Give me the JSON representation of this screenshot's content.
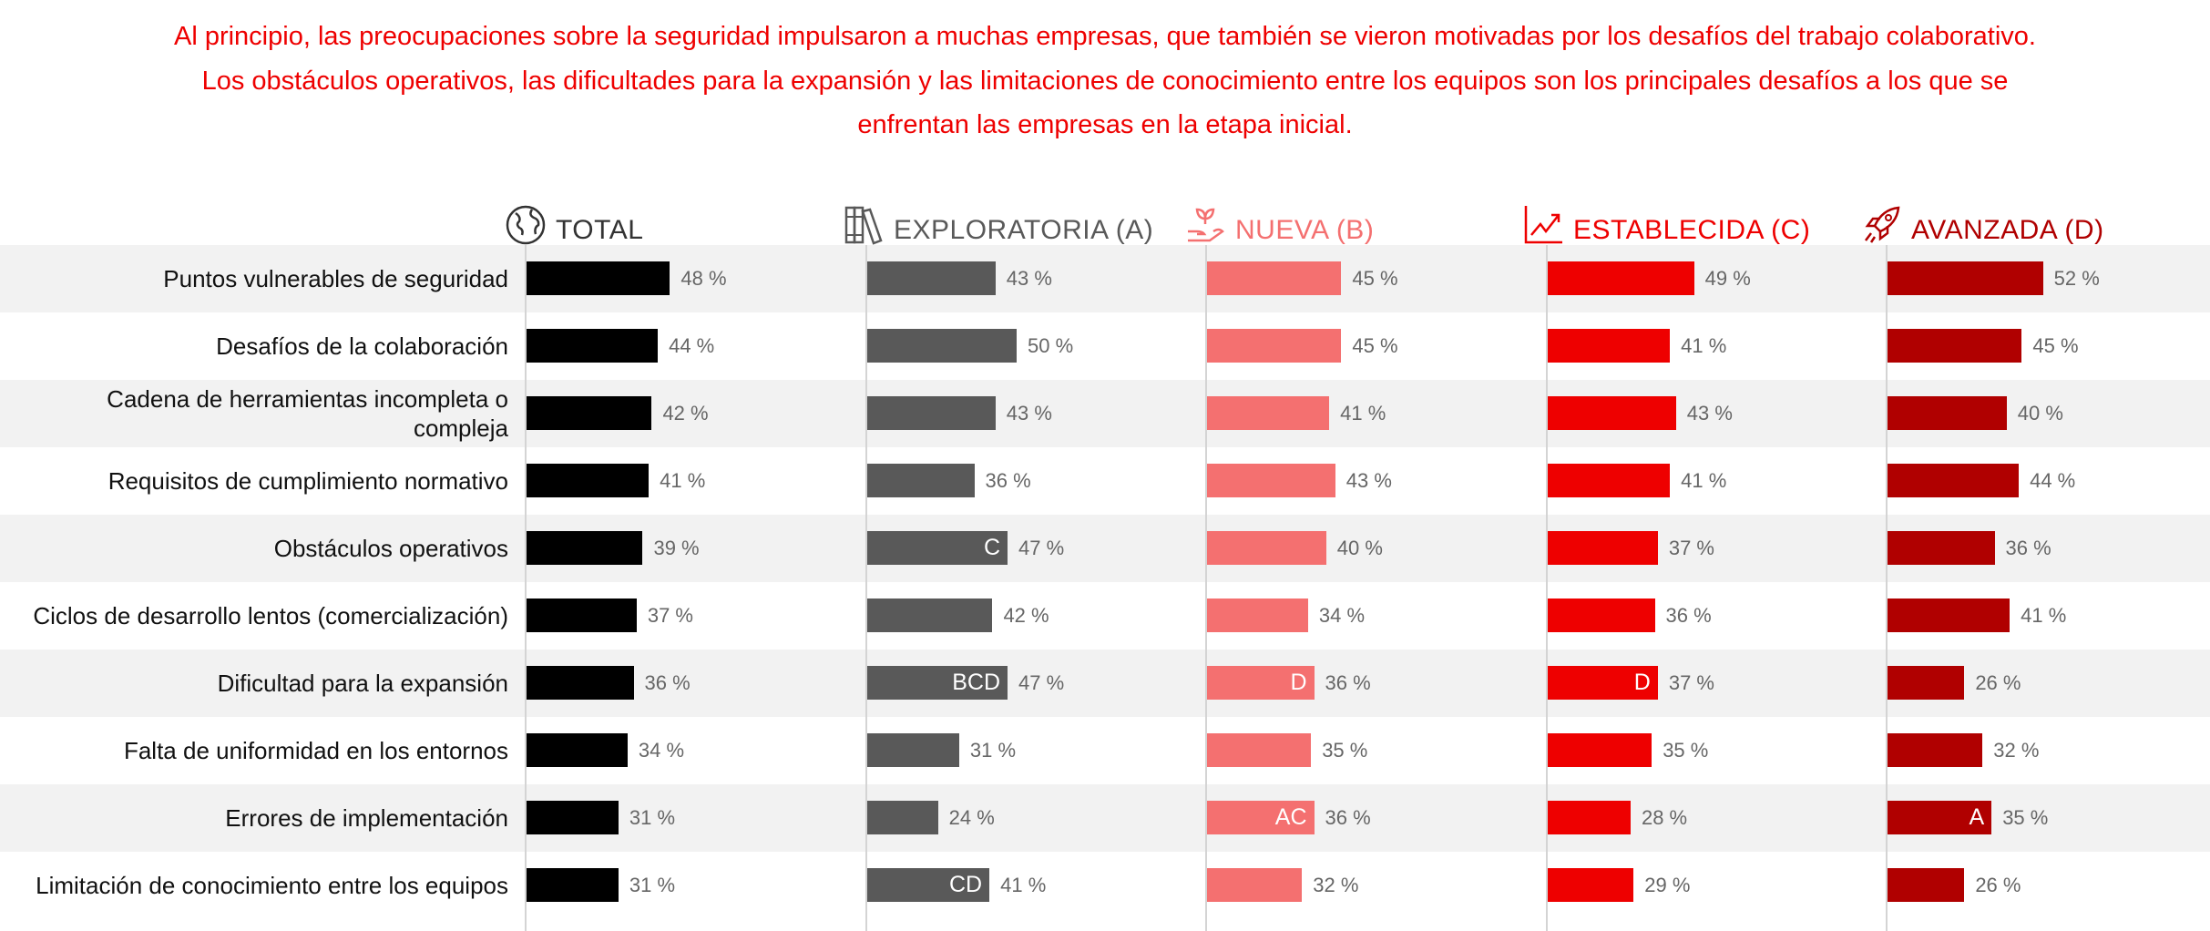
{
  "title_lines": [
    "Al principio, las preocupaciones sobre la seguridad impulsaron a muchas empresas, que también se vieron motivadas por los desafíos del trabajo colaborativo.",
    "Los obstáculos operativos, las dificultades para la expansión y las limitaciones de conocimiento entre los equipos son los principales desafíos a los que se",
    "enfrentan las empresas en la etapa inicial."
  ],
  "chart_data": {
    "type": "bar",
    "orientation": "horizontal",
    "unit": "%",
    "xlim": [
      0,
      100
    ],
    "grid": false,
    "categories": [
      "Puntos vulnerables de seguridad",
      "Desafíos de la colaboración",
      "Cadena de herramientas incompleta o compleja",
      "Requisitos de cumplimiento normativo",
      "Obstáculos operativos",
      "Ciclos de desarrollo lentos (comercialización)",
      "Dificultad para la expansión",
      "Falta de uniformidad en los entornos",
      "Errores de implementación",
      "Limitación de conocimiento entre los equipos"
    ],
    "series": [
      {
        "name": "TOTAL",
        "icon": "globe-icon",
        "color": "#000000",
        "header_color": "#333333",
        "values": [
          48,
          44,
          42,
          41,
          39,
          37,
          36,
          34,
          31,
          31
        ],
        "sig": [
          "",
          "",
          "",
          "",
          "",
          "",
          "",
          "",
          "",
          ""
        ]
      },
      {
        "name": "EXPLORATORIA (A)",
        "icon": "books-icon",
        "color": "#595959",
        "header_color": "#595959",
        "values": [
          43,
          50,
          43,
          36,
          47,
          42,
          47,
          31,
          24,
          41
        ],
        "sig": [
          "",
          "",
          "",
          "",
          "C",
          "",
          "BCD",
          "",
          "",
          "CD"
        ]
      },
      {
        "name": "NUEVA (B)",
        "icon": "seedling-icon",
        "color": "#f47070",
        "header_color": "#f47070",
        "values": [
          45,
          45,
          41,
          43,
          40,
          34,
          36,
          35,
          36,
          32
        ],
        "sig": [
          "",
          "",
          "",
          "",
          "",
          "",
          "D",
          "",
          "AC",
          ""
        ]
      },
      {
        "name": "ESTABLECIDA (C)",
        "icon": "trend-chart-icon",
        "color": "#ee0000",
        "header_color": "#ee0000",
        "values": [
          49,
          41,
          43,
          41,
          37,
          36,
          37,
          35,
          28,
          29
        ],
        "sig": [
          "",
          "",
          "",
          "",
          "",
          "",
          "D",
          "",
          "",
          ""
        ]
      },
      {
        "name": "AVANZADA (D)",
        "icon": "rocket-icon",
        "color": "#b00000",
        "header_color": "#b00000",
        "values": [
          52,
          45,
          40,
          44,
          36,
          41,
          26,
          32,
          35,
          26
        ],
        "sig": [
          "",
          "",
          "",
          "",
          "",
          "",
          "",
          "",
          "A",
          ""
        ]
      }
    ]
  }
}
